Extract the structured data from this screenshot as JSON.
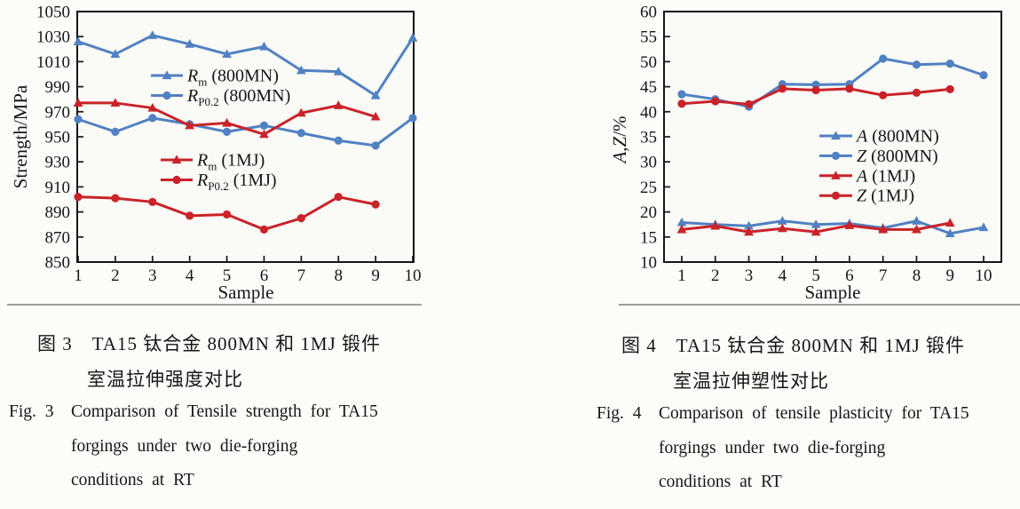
{
  "colors": {
    "blue": "#5081c2",
    "red": "#c92329",
    "axis": "#161616",
    "rule": "#9e9ea0",
    "plot_bg": "#fafaf6"
  },
  "chart_data": [
    {
      "type": "line",
      "title": "",
      "xlabel": "Sample",
      "ylabel_parts": [
        {
          "t": "Strength/MPa",
          "i": false
        }
      ],
      "x": [
        1,
        2,
        3,
        4,
        5,
        6,
        7,
        8,
        9,
        10
      ],
      "xticks": [
        "1",
        "2",
        "3",
        "4",
        "5",
        "6",
        "7",
        "8",
        "9",
        "10"
      ],
      "ylim": [
        850,
        1050
      ],
      "yticks": [
        850,
        870,
        890,
        910,
        930,
        950,
        970,
        990,
        1010,
        1030,
        1050
      ],
      "grid": false,
      "legend_position": "inside upper-middle and center-left, two groups",
      "series": [
        {
          "name": "Rm (800MN)",
          "sym": "R",
          "sub": "m",
          "cond": "(800MN)",
          "color": "#5081c2",
          "marker": "triangle",
          "values": [
            1026,
            1016,
            1031,
            1024,
            1016,
            1022,
            1003,
            1002,
            983,
            1029
          ]
        },
        {
          "name": "RP0.2 (800MN)",
          "sym": "R",
          "sub": "P0.2",
          "cond": "(800MN)",
          "color": "#5081c2",
          "marker": "circle",
          "values": [
            964,
            954,
            965,
            960,
            954,
            959,
            953,
            947,
            943,
            965
          ]
        },
        {
          "name": "Rm (1MJ)",
          "sym": "R",
          "sub": "m",
          "cond": "(1MJ)",
          "color": "#c92329",
          "marker": "triangle",
          "values": [
            977,
            977,
            973,
            959,
            961,
            952,
            969,
            975,
            966
          ]
        },
        {
          "name": "RP0.2 (1MJ)",
          "sym": "R",
          "sub": "P0.2",
          "cond": "(1MJ)",
          "color": "#c92329",
          "marker": "circle",
          "values": [
            902,
            901,
            898,
            887,
            888,
            876,
            885,
            902,
            896
          ]
        }
      ]
    },
    {
      "type": "line",
      "title": "",
      "xlabel": "Sample",
      "ylabel_parts": [
        {
          "t": "A",
          "i": true
        },
        {
          "t": ",",
          "i": false
        },
        {
          "t": "Z",
          "i": true
        },
        {
          "t": "/%",
          "i": false
        }
      ],
      "x": [
        1,
        2,
        3,
        4,
        5,
        6,
        7,
        8,
        9,
        10
      ],
      "xticks": [
        "1",
        "2",
        "3",
        "4",
        "5",
        "6",
        "7",
        "8",
        "9",
        "10"
      ],
      "ylim": [
        10,
        60
      ],
      "yticks": [
        10,
        15,
        20,
        25,
        30,
        35,
        40,
        45,
        50,
        55,
        60
      ],
      "grid": false,
      "legend_position": "inside middle-right, one group",
      "series": [
        {
          "name": "A (800MN)",
          "sym": "A",
          "sub": "",
          "cond": "(800MN)",
          "color": "#5081c2",
          "marker": "triangle",
          "values": [
            17.9,
            17.5,
            17.2,
            18.2,
            17.5,
            17.7,
            16.8,
            18.2,
            15.7,
            16.9
          ]
        },
        {
          "name": "Z (800MN)",
          "sym": "Z",
          "sub": "",
          "cond": "(800MN)",
          "color": "#5081c2",
          "marker": "circle",
          "values": [
            43.5,
            42.5,
            41.0,
            45.5,
            45.4,
            45.5,
            50.6,
            49.4,
            49.6,
            47.3
          ]
        },
        {
          "name": "A (1MJ)",
          "sym": "A",
          "sub": "",
          "cond": "(1MJ)",
          "color": "#c92329",
          "marker": "triangle",
          "values": [
            16.5,
            17.2,
            16.0,
            16.7,
            16.0,
            17.3,
            16.5,
            16.5,
            17.8
          ]
        },
        {
          "name": "Z (1MJ)",
          "sym": "Z",
          "sub": "",
          "cond": "(1MJ)",
          "color": "#c92329",
          "marker": "circle",
          "values": [
            41.6,
            42.1,
            41.5,
            44.6,
            44.3,
            44.6,
            43.3,
            43.8,
            44.5
          ]
        }
      ]
    }
  ],
  "captions": {
    "fig3": {
      "zh_line1": "图 3　TA15 钛合金 800MN 和 1MJ 锻件",
      "zh_line2": "室温拉伸强度对比",
      "en_label": "Fig. 3",
      "en_line1": "Comparison of Tensile strength for TA15",
      "en_line2": "forgings under two die-forging",
      "en_line3": "conditions at RT"
    },
    "fig4": {
      "zh_line1": "图 4　TA15 钛合金 800MN 和 1MJ 锻件",
      "zh_line2": "室温拉伸塑性对比",
      "en_label": "Fig. 4",
      "en_line1": "Comparison of tensile plasticity for TA15",
      "en_line2": "forgings under two die-forging",
      "en_line3": "conditions at RT"
    }
  }
}
